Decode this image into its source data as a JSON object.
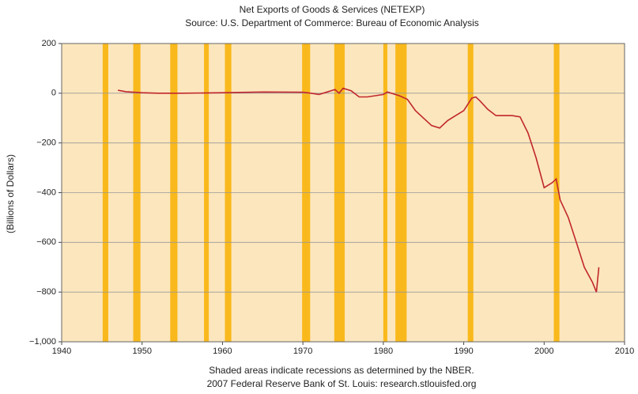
{
  "chart_data": {
    "type": "line",
    "title": "Net Exports of Goods & Services (NETEXP)",
    "subtitle": "Source: U.S. Department of Commerce: Bureau of Economic Analysis",
    "y_label": "(Billions of Dollars)",
    "footnote": "Shaded areas indicate recessions as determined by the NBER.",
    "footnote2": "2007 Federal Reserve Bank of St. Louis: research.stlouisfed.org",
    "xlim": [
      1940,
      2010
    ],
    "xticks": [
      1940,
      1950,
      1960,
      1970,
      1980,
      1990,
      2000,
      2010
    ],
    "ylim": [
      -1000,
      200
    ],
    "yticks": [
      {
        "value": -1000,
        "label": "−1,000"
      },
      {
        "value": -800,
        "label": "−800"
      },
      {
        "value": -600,
        "label": "−600"
      },
      {
        "value": -400,
        "label": "−400"
      },
      {
        "value": -200,
        "label": "−200"
      },
      0,
      200
    ],
    "grid": true,
    "color": "#c0272d",
    "recession_color": "#f9b91c",
    "recessions": [
      [
        1945.1,
        1945.8
      ],
      [
        1948.9,
        1949.8
      ],
      [
        1953.5,
        1954.4
      ],
      [
        1957.7,
        1958.3
      ],
      [
        1960.3,
        1961.1
      ],
      [
        1969.9,
        1970.9
      ],
      [
        1973.9,
        1975.2
      ],
      [
        1980.0,
        1980.5
      ],
      [
        1981.5,
        1982.9
      ],
      [
        1990.5,
        1991.2
      ],
      [
        2001.2,
        2001.9
      ]
    ],
    "x": [
      1947,
      1948,
      1949,
      1950,
      1952,
      1955,
      1960,
      1965,
      1970,
      1971,
      1972,
      1973,
      1974,
      1974.5,
      1975,
      1976,
      1977,
      1978,
      1979,
      1980,
      1980.5,
      1981,
      1982,
      1983,
      1984,
      1985,
      1986,
      1987,
      1988,
      1989,
      1990,
      1991,
      1991.5,
      1992,
      1993,
      1994,
      1995,
      1996,
      1997,
      1998,
      1999,
      2000,
      2001,
      2001.5,
      2002,
      2003,
      2004,
      2005,
      2006,
      2006.5,
      2006.8
    ],
    "values": [
      12,
      6,
      4,
      2,
      0,
      0,
      2,
      5,
      4,
      0,
      -5,
      5,
      15,
      0,
      20,
      10,
      -15,
      -15,
      -10,
      -5,
      5,
      0,
      -10,
      -25,
      -70,
      -100,
      -130,
      -140,
      -110,
      -90,
      -70,
      -20,
      -15,
      -30,
      -65,
      -90,
      -90,
      -90,
      -95,
      -160,
      -260,
      -380,
      -360,
      -345,
      -430,
      -500,
      -600,
      -700,
      -760,
      -800,
      -700
    ]
  }
}
